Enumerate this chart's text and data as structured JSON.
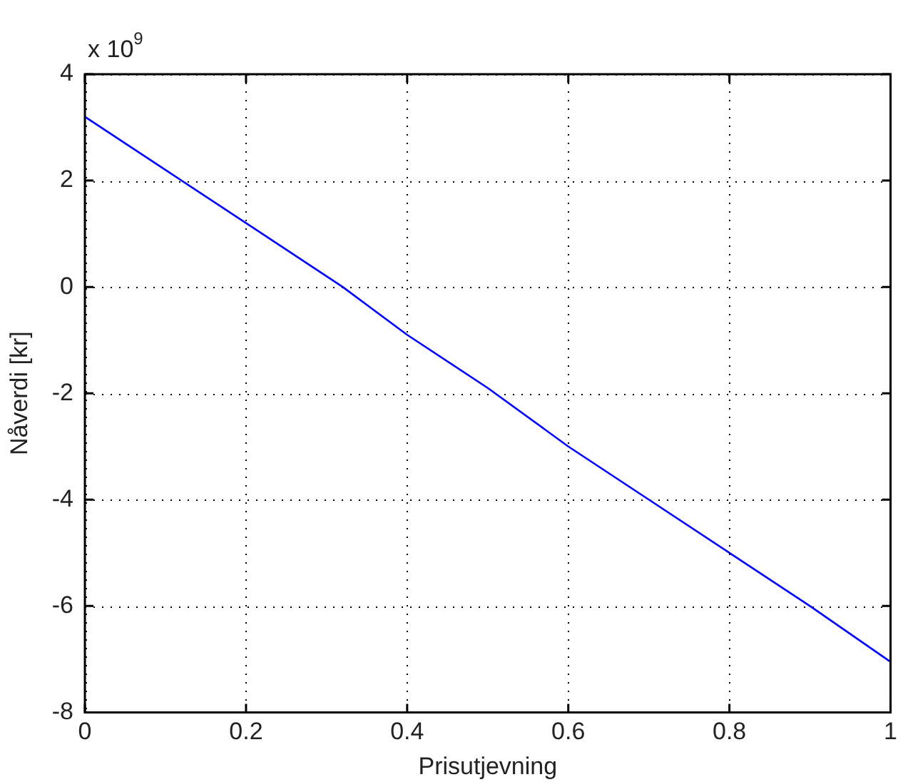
{
  "chart_data": {
    "type": "line",
    "xlabel": "Prisutjevning",
    "ylabel": "Nåverdi [kr]",
    "annotations": [
      "x 10$^{9}$"
    ],
    "x": [
      0,
      0.1,
      0.2,
      0.32,
      0.4,
      0.5,
      0.6,
      0.7,
      0.8,
      0.9,
      1
    ],
    "series": [
      {
        "color": "#0000ff",
        "values": [
          3.2,
          2.2,
          1.2,
          0,
          -0.9,
          -1.9,
          -3.0,
          -4.0,
          -5.0,
          -6.0,
          -7.05
        ]
      }
    ],
    "xlim": [
      0,
      1
    ],
    "xticks": [
      0,
      0.2,
      0.4,
      0.6,
      0.8,
      1
    ],
    "ylim": [
      -8,
      4
    ],
    "yticks": [
      -8,
      -6,
      -4,
      -2,
      0,
      2,
      4
    ],
    "grid": true,
    "legend": false,
    "marker": "none",
    "line_style": "solid"
  }
}
